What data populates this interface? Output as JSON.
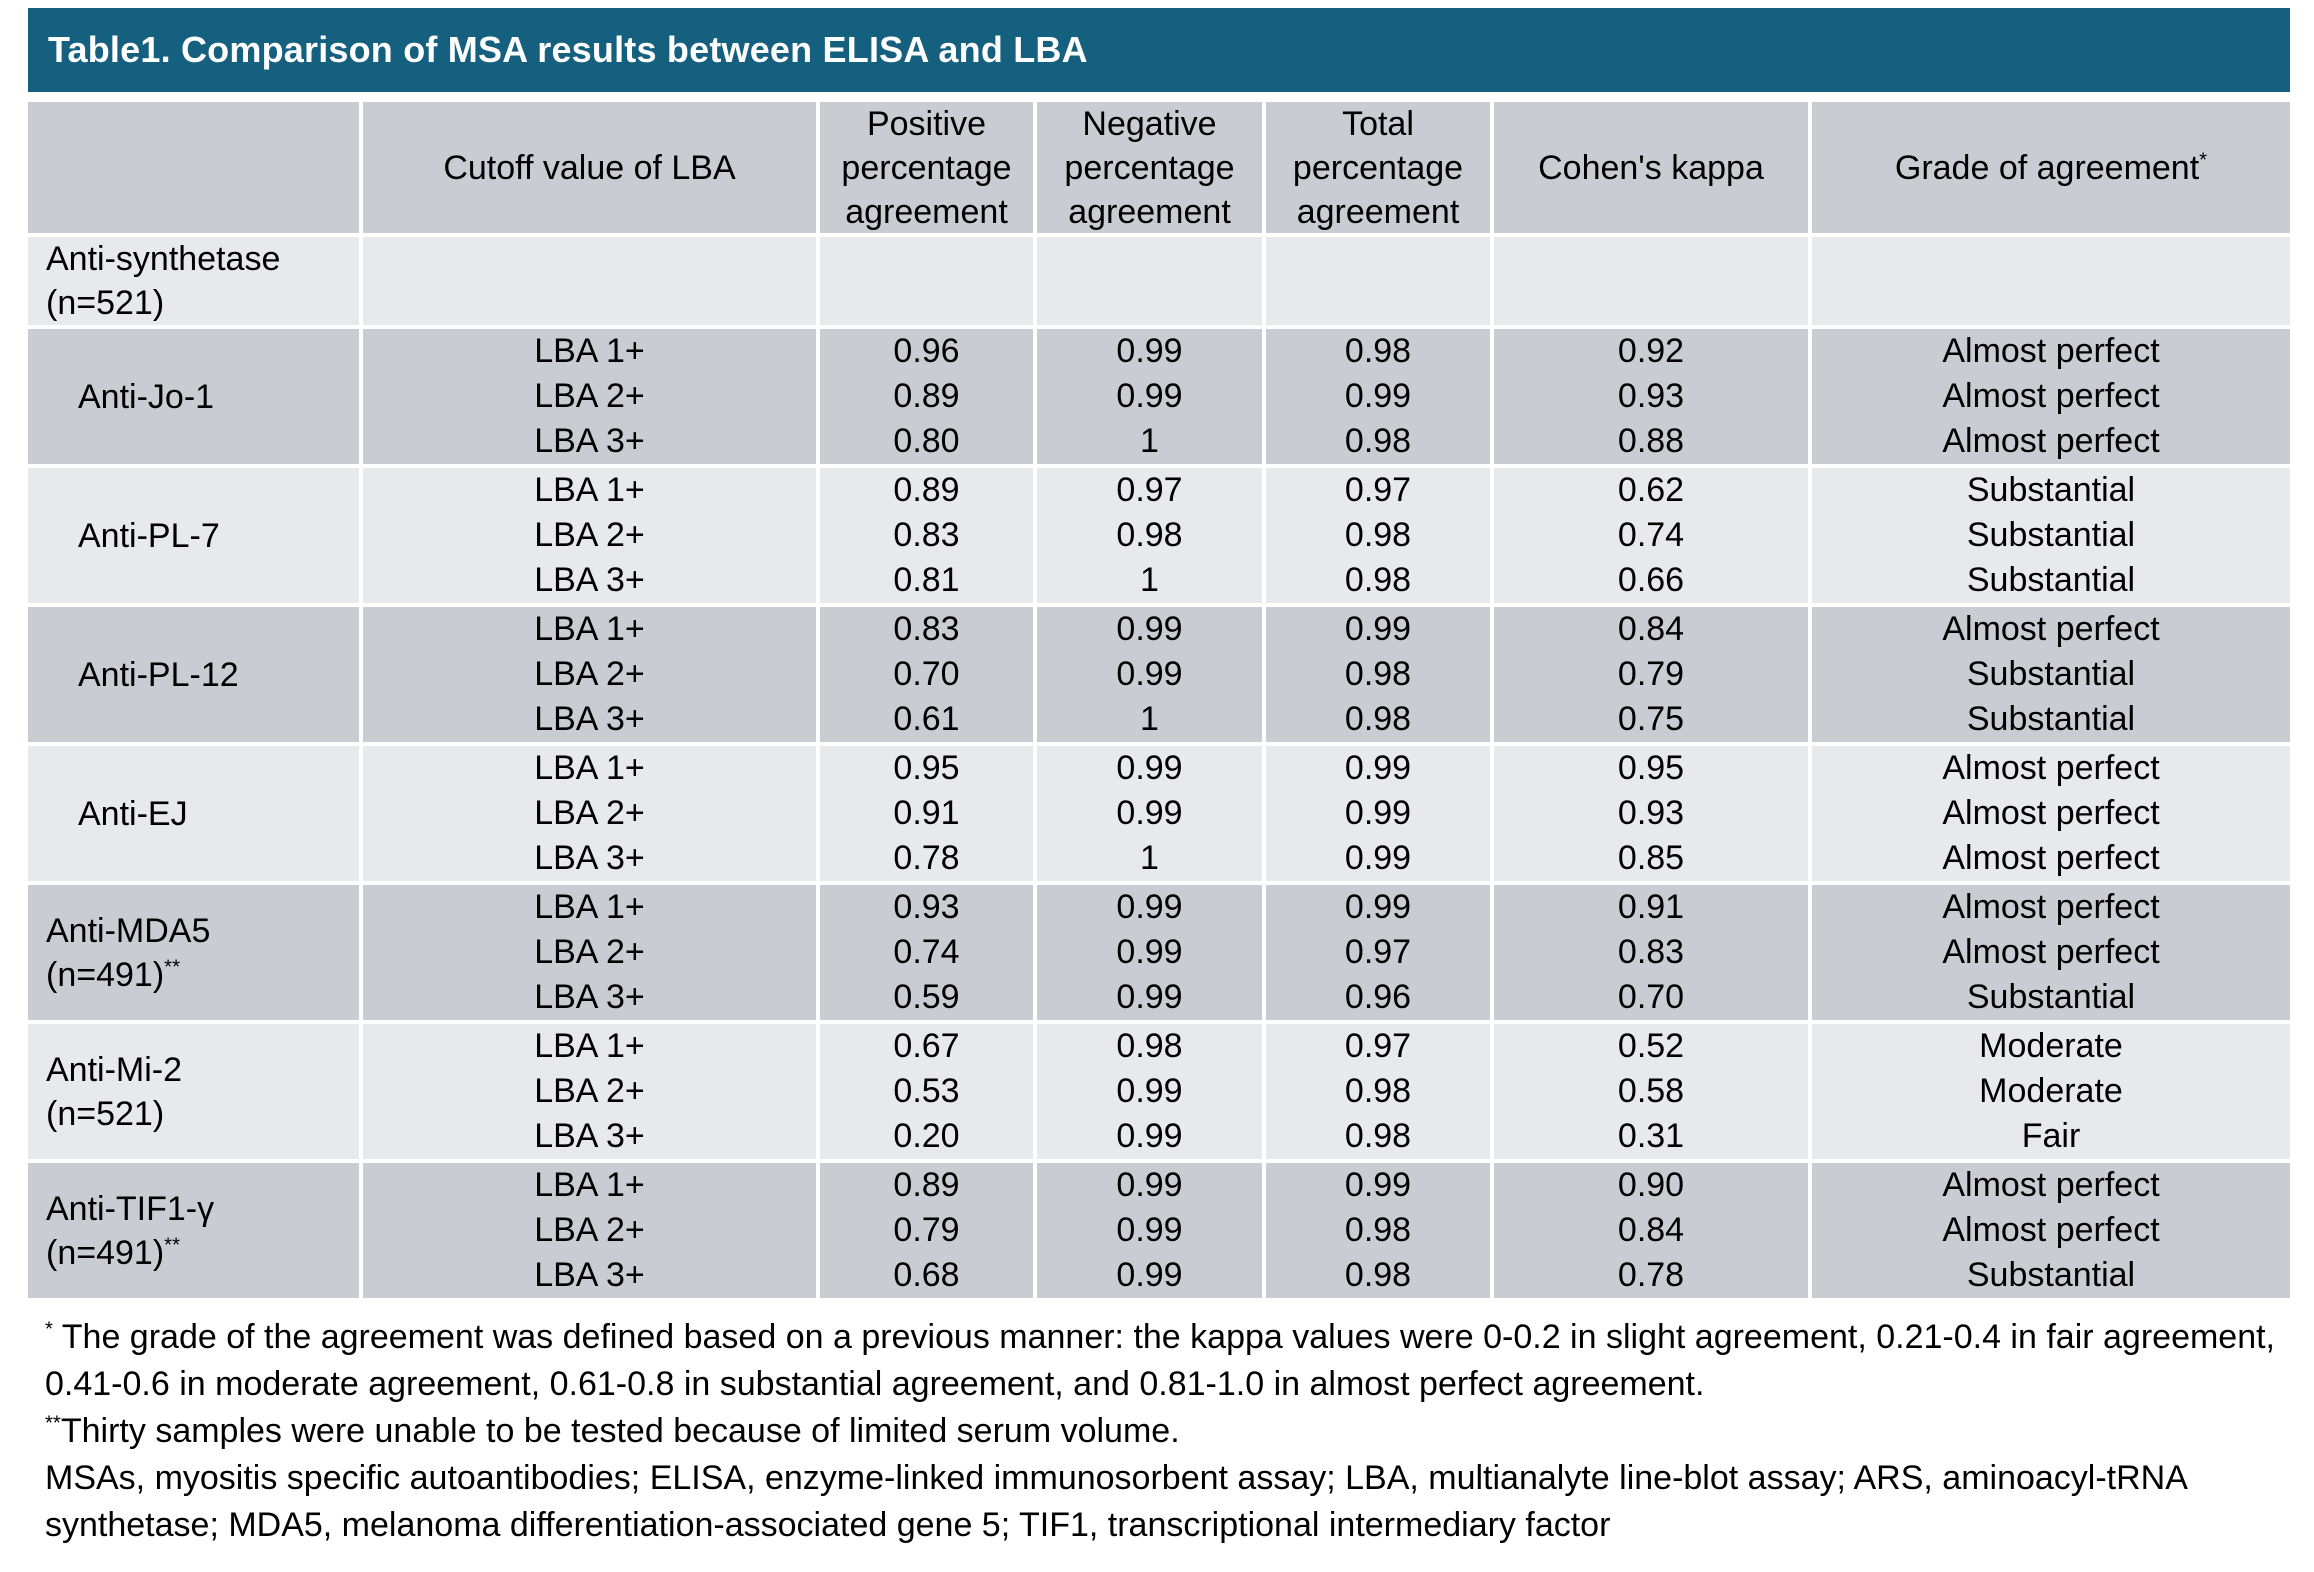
{
  "title": "Table1. Comparison of MSA results between ELISA and LBA",
  "colors": {
    "title_bg": "#16607F",
    "title_text": "#FFFFFF",
    "row_dark": "#C9CDD3",
    "row_light": "#E7E9EC",
    "text": "#000000"
  },
  "table": {
    "headers": [
      {
        "text": "",
        "sup": ""
      },
      {
        "text": "Cutoff value of LBA",
        "sup": ""
      },
      {
        "text": "Positive percentage agreement",
        "sup": ""
      },
      {
        "text": "Negative percentage agreement",
        "sup": ""
      },
      {
        "text": "Total percentage agreement",
        "sup": ""
      },
      {
        "text": "Cohen's kappa",
        "sup": ""
      },
      {
        "text": "Grade of agreement",
        "sup": "*"
      }
    ],
    "rows": [
      {
        "label": "Anti-synthetase",
        "note": "(n=521)",
        "sup": ""
      },
      {
        "label": "Anti-Jo-1",
        "note": "",
        "sup": "",
        "cutoffs": [
          "LBA 1+",
          "LBA 2+",
          "LBA 3+"
        ],
        "ppa": [
          "0.96",
          "0.89",
          "0.80"
        ],
        "npa": [
          "0.99",
          "0.99",
          "1"
        ],
        "tpa": [
          "0.98",
          "0.99",
          "0.98"
        ],
        "kappa": [
          "0.92",
          "0.93",
          "0.88"
        ],
        "grade": [
          "Almost perfect",
          "Almost perfect",
          "Almost perfect"
        ]
      },
      {
        "label": "Anti-PL-7",
        "note": "",
        "sup": "",
        "cutoffs": [
          "LBA 1+",
          "LBA 2+",
          "LBA 3+"
        ],
        "ppa": [
          "0.89",
          "0.83",
          "0.81"
        ],
        "npa": [
          "0.97",
          "0.98",
          "1"
        ],
        "tpa": [
          "0.97",
          "0.98",
          "0.98"
        ],
        "kappa": [
          "0.62",
          "0.74",
          "0.66"
        ],
        "grade": [
          "Substantial",
          "Substantial",
          "Substantial"
        ]
      },
      {
        "label": "Anti-PL-12",
        "note": "",
        "sup": "",
        "cutoffs": [
          "LBA 1+",
          "LBA 2+",
          "LBA 3+"
        ],
        "ppa": [
          "0.83",
          "0.70",
          "0.61"
        ],
        "npa": [
          "0.99",
          "0.99",
          "1"
        ],
        "tpa": [
          "0.99",
          "0.98",
          "0.98"
        ],
        "kappa": [
          "0.84",
          "0.79",
          "0.75"
        ],
        "grade": [
          "Almost perfect",
          "Substantial",
          "Substantial"
        ]
      },
      {
        "label": "Anti-EJ",
        "note": "",
        "sup": "",
        "cutoffs": [
          "LBA 1+",
          "LBA 2+",
          "LBA 3+"
        ],
        "ppa": [
          "0.95",
          "0.91",
          "0.78"
        ],
        "npa": [
          "0.99",
          "0.99",
          "1"
        ],
        "tpa": [
          "0.99",
          "0.99",
          "0.99"
        ],
        "kappa": [
          "0.95",
          "0.93",
          "0.85"
        ],
        "grade": [
          "Almost perfect",
          "Almost perfect",
          "Almost perfect"
        ]
      },
      {
        "label": "Anti-MDA5",
        "note": "(n=491)",
        "sup": "**",
        "cutoffs": [
          "LBA 1+",
          "LBA 2+",
          "LBA 3+"
        ],
        "ppa": [
          "0.93",
          "0.74",
          "0.59"
        ],
        "npa": [
          "0.99",
          "0.99",
          "0.99"
        ],
        "tpa": [
          "0.99",
          "0.97",
          "0.96"
        ],
        "kappa": [
          "0.91",
          "0.83",
          "0.70"
        ],
        "grade": [
          "Almost perfect",
          "Almost perfect",
          "Substantial"
        ]
      },
      {
        "label": "Anti-Mi-2",
        "note": "(n=521)",
        "sup": "",
        "cutoffs": [
          "LBA 1+",
          "LBA 2+",
          "LBA 3+"
        ],
        "ppa": [
          "0.67",
          "0.53",
          "0.20"
        ],
        "npa": [
          "0.98",
          "0.99",
          "0.99"
        ],
        "tpa": [
          "0.97",
          "0.98",
          "0.98"
        ],
        "kappa": [
          "0.52",
          "0.58",
          "0.31"
        ],
        "grade": [
          "Moderate",
          "Moderate",
          "Fair"
        ]
      },
      {
        "label": "Anti-TIF1-γ",
        "note": "(n=491)",
        "sup": "**",
        "cutoffs": [
          "LBA 1+",
          "LBA 2+",
          "LBA 3+"
        ],
        "ppa": [
          "0.89",
          "0.79",
          "0.68"
        ],
        "npa": [
          "0.99",
          "0.99",
          "0.99"
        ],
        "tpa": [
          "0.99",
          "0.98",
          "0.98"
        ],
        "kappa": [
          "0.90",
          "0.84",
          "0.78"
        ],
        "grade": [
          "Almost perfect",
          "Almost perfect",
          "Substantial"
        ]
      }
    ]
  },
  "footnotes": [
    {
      "sup": "*",
      "text": " The grade of the agreement was defined based on a previous manner: the kappa values were 0-0.2 in slight agreement, 0.21-0.4 in fair agreement, 0.41-0.6 in moderate agreement, 0.61-0.8 in substantial agreement, and 0.81-1.0 in almost perfect agreement."
    },
    {
      "sup": "**",
      "text": "Thirty samples were unable to be tested because of limited serum volume."
    },
    {
      "sup": "",
      "text": "MSAs, myositis specific autoantibodies; ELISA, enzyme-linked immunosorbent assay; LBA, multianalyte line-blot assay; ARS, aminoacyl-tRNA synthetase; MDA5, melanoma differentiation-associated gene 5; TIF1, transcriptional intermediary factor"
    }
  ]
}
